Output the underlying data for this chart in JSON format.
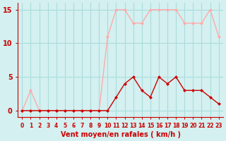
{
  "x": [
    0,
    1,
    2,
    3,
    4,
    5,
    6,
    7,
    8,
    9,
    10,
    11,
    12,
    13,
    14,
    15,
    16,
    17,
    18,
    19,
    20,
    21,
    22,
    23
  ],
  "rafales": [
    0,
    3,
    0,
    0,
    0,
    0,
    0,
    0,
    0,
    0,
    11,
    15,
    15,
    13,
    13,
    15,
    15,
    15,
    15,
    13,
    13,
    13,
    15,
    11
  ],
  "moyen": [
    0,
    0,
    0,
    0,
    0,
    0,
    0,
    0,
    0,
    0,
    0,
    2,
    4,
    5,
    3,
    2,
    5,
    4,
    5,
    3,
    3,
    3,
    2,
    1
  ],
  "color_rafales": "#ffaaaa",
  "color_moyen": "#cc0000",
  "bg_color": "#d4f0f0",
  "grid_color": "#aadddd",
  "xlabel": "Vent moyen/en rafales ( km/h )",
  "ylabel_ticks": [
    0,
    5,
    10,
    15
  ],
  "xlim": [
    -0.5,
    23.5
  ],
  "ylim": [
    -1,
    16
  ],
  "tick_labels": [
    "0",
    "1",
    "2",
    "3",
    "4",
    "5",
    "6",
    "7",
    "8",
    "9",
    "10",
    "11",
    "12",
    "13",
    "14",
    "15",
    "16",
    "17",
    "18",
    "19",
    "20",
    "21",
    "22",
    "23"
  ]
}
